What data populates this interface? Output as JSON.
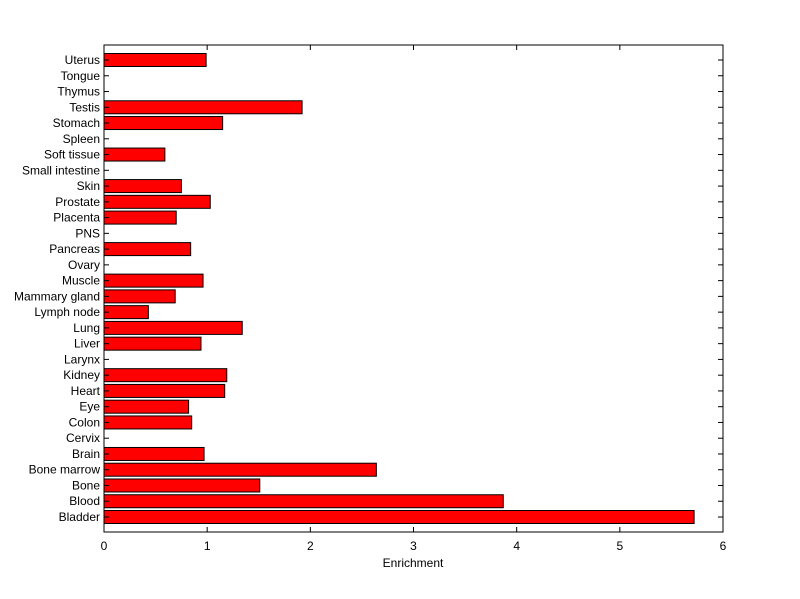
{
  "chart_data": {
    "type": "bar",
    "orientation": "horizontal",
    "categories": [
      "Bladder",
      "Blood",
      "Bone",
      "Bone marrow",
      "Brain",
      "Cervix",
      "Colon",
      "Eye",
      "Heart",
      "Kidney",
      "Larynx",
      "Liver",
      "Lung",
      "Lymph node",
      "Mammary gland",
      "Muscle",
      "Ovary",
      "Pancreas",
      "PNS",
      "Placenta",
      "Prostate",
      "Skin",
      "Small intestine",
      "Soft tissue",
      "Spleen",
      "Stomach",
      "Testis",
      "Thymus",
      "Tongue",
      "Uterus"
    ],
    "values": [
      5.72,
      3.87,
      1.51,
      2.64,
      0.97,
      0,
      0.85,
      0.82,
      1.17,
      1.19,
      0,
      0.94,
      1.34,
      0.43,
      0.69,
      0.96,
      0,
      0.84,
      0,
      0.7,
      1.03,
      0.75,
      0,
      0.59,
      0,
      1.15,
      1.92,
      0,
      0,
      0.99
    ],
    "xlabel": "Enrichment",
    "ylabel": "",
    "title": "",
    "xlim": [
      0,
      6
    ],
    "xticks": [
      0,
      1,
      2,
      3,
      4,
      5,
      6
    ],
    "bar_color": "#ff0000",
    "grid": false,
    "legend": "none"
  }
}
